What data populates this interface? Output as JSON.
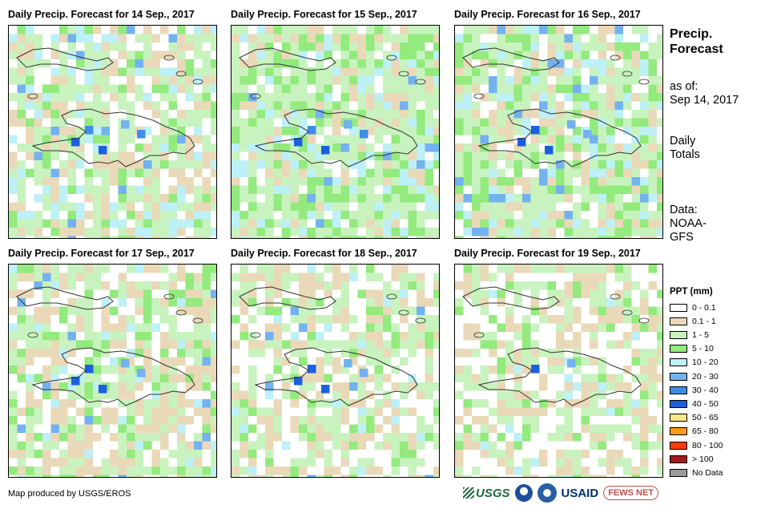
{
  "panels": [
    {
      "title": "Daily Precip. Forecast for 14 Sep., 2017"
    },
    {
      "title": "Daily Precip. Forecast for 15 Sep., 2017"
    },
    {
      "title": "Daily Precip. Forecast for 16 Sep., 2017"
    },
    {
      "title": "Daily Precip. Forecast for 17 Sep., 2017"
    },
    {
      "title": "Daily Precip. Forecast for 18 Sep., 2017"
    },
    {
      "title": "Daily Precip. Forecast for 19 Sep., 2017"
    }
  ],
  "side": {
    "title_line1": "Precip.",
    "title_line2": "Forecast",
    "asof_line1": "as of:",
    "asof_line2": "Sep 14, 2017",
    "totals_line1": "Daily",
    "totals_line2": "Totals",
    "data_line1": "Data:",
    "data_line2": "NOAA-",
    "data_line3": "GFS"
  },
  "legend": {
    "title": "PPT (mm)",
    "items": [
      {
        "label": "0 - 0.1",
        "color": "#ffffff"
      },
      {
        "label": "0.1 - 1",
        "color": "#ead9b8"
      },
      {
        "label": "1 - 5",
        "color": "#c8f3bf"
      },
      {
        "label": "5 - 10",
        "color": "#93ea7d"
      },
      {
        "label": "10 - 20",
        "color": "#bdf0f7"
      },
      {
        "label": "20 - 30",
        "color": "#73b2ef"
      },
      {
        "label": "30 - 40",
        "color": "#3d8ee8"
      },
      {
        "label": "40 - 50",
        "color": "#1c5fe0"
      },
      {
        "label": "50 - 65",
        "color": "#fbe88a"
      },
      {
        "label": "65 - 80",
        "color": "#f99b13"
      },
      {
        "label": "80 - 100",
        "color": "#fb3b08"
      },
      {
        "label": "> 100",
        "color": "#a3181a"
      },
      {
        "label": "No Data",
        "color": "#9b9b9b"
      }
    ]
  },
  "credit": "Map produced by USGS/EROS",
  "logos": {
    "usgs": "USGS",
    "usaid": "USAID",
    "fews": "FEWS NET"
  }
}
